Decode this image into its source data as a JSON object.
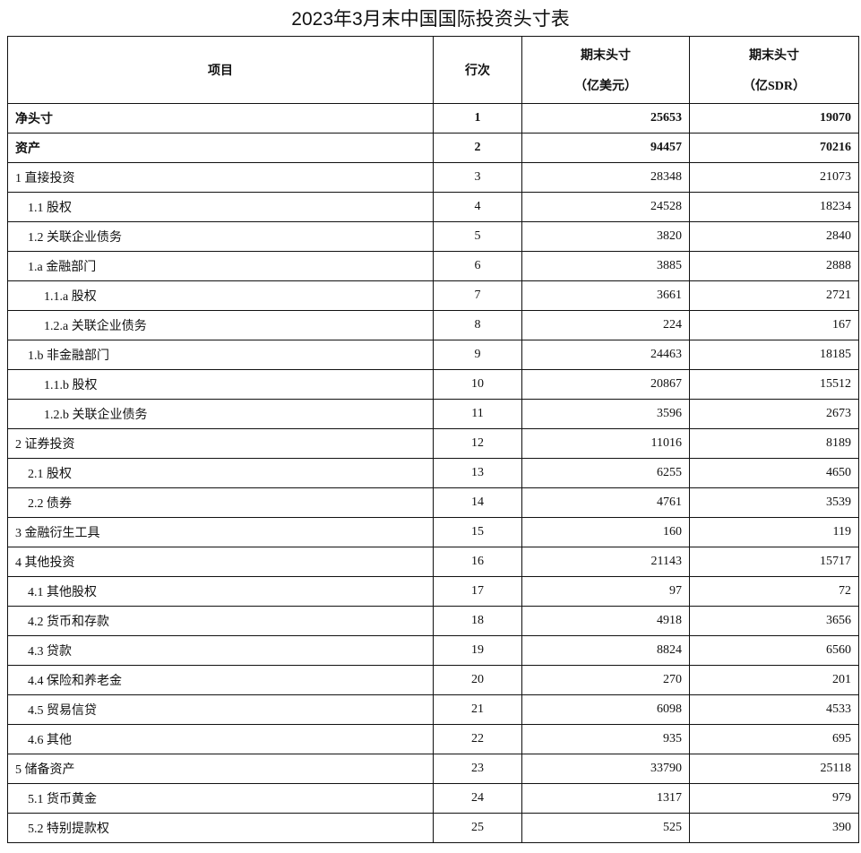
{
  "title": "2023年3月末中国国际投资头寸表",
  "headers": {
    "item": "项目",
    "row_no": "行次",
    "usd_line1": "期末头寸",
    "usd_line2": "（亿美元）",
    "sdr_line1": "期末头寸",
    "sdr_line2": "（亿SDR）"
  },
  "rows": [
    {
      "item": "净头寸",
      "no": "1",
      "usd": "25653",
      "sdr": "19070",
      "level": 0,
      "bold": true
    },
    {
      "item": "资产",
      "no": "2",
      "usd": "94457",
      "sdr": "70216",
      "level": 0,
      "bold": true
    },
    {
      "item": "1 直接投资",
      "no": "3",
      "usd": "28348",
      "sdr": "21073",
      "level": 0
    },
    {
      "item": "1.1 股权",
      "no": "4",
      "usd": "24528",
      "sdr": "18234",
      "level": 1
    },
    {
      "item": "1.2 关联企业债务",
      "no": "5",
      "usd": "3820",
      "sdr": "2840",
      "level": 1
    },
    {
      "item": "1.a 金融部门",
      "no": "6",
      "usd": "3885",
      "sdr": "2888",
      "level": 1
    },
    {
      "item": "1.1.a 股权",
      "no": "7",
      "usd": "3661",
      "sdr": "2721",
      "level": 2
    },
    {
      "item": "1.2.a 关联企业债务",
      "no": "8",
      "usd": "224",
      "sdr": "167",
      "level": 2
    },
    {
      "item": "1.b 非金融部门",
      "no": "9",
      "usd": "24463",
      "sdr": "18185",
      "level": 1
    },
    {
      "item": "1.1.b 股权",
      "no": "10",
      "usd": "20867",
      "sdr": "15512",
      "level": 2
    },
    {
      "item": "1.2.b 关联企业债务",
      "no": "11",
      "usd": "3596",
      "sdr": "2673",
      "level": 2
    },
    {
      "item": "2 证券投资",
      "no": "12",
      "usd": "11016",
      "sdr": "8189",
      "level": 0
    },
    {
      "item": "2.1 股权",
      "no": "13",
      "usd": "6255",
      "sdr": "4650",
      "level": 1
    },
    {
      "item": "2.2 债券",
      "no": "14",
      "usd": "4761",
      "sdr": "3539",
      "level": 1
    },
    {
      "item": "3 金融衍生工具",
      "no": "15",
      "usd": "160",
      "sdr": "119",
      "level": 0
    },
    {
      "item": "4 其他投资",
      "no": "16",
      "usd": "21143",
      "sdr": "15717",
      "level": 0
    },
    {
      "item": "4.1 其他股权",
      "no": "17",
      "usd": "97",
      "sdr": "72",
      "level": 1
    },
    {
      "item": "4.2 货币和存款",
      "no": "18",
      "usd": "4918",
      "sdr": "3656",
      "level": 1
    },
    {
      "item": "4.3 贷款",
      "no": "19",
      "usd": "8824",
      "sdr": "6560",
      "level": 1
    },
    {
      "item": "4.4 保险和养老金",
      "no": "20",
      "usd": "270",
      "sdr": "201",
      "level": 1
    },
    {
      "item": "4.5 贸易信贷",
      "no": "21",
      "usd": "6098",
      "sdr": "4533",
      "level": 1
    },
    {
      "item": "4.6 其他",
      "no": "22",
      "usd": "935",
      "sdr": "695",
      "level": 1
    },
    {
      "item": "5 储备资产",
      "no": "23",
      "usd": "33790",
      "sdr": "25118",
      "level": 0
    },
    {
      "item": "5.1 货币黄金",
      "no": "24",
      "usd": "1317",
      "sdr": "979",
      "level": 1
    },
    {
      "item": "5.2 特别提款权",
      "no": "25",
      "usd": "525",
      "sdr": "390",
      "level": 1
    }
  ]
}
